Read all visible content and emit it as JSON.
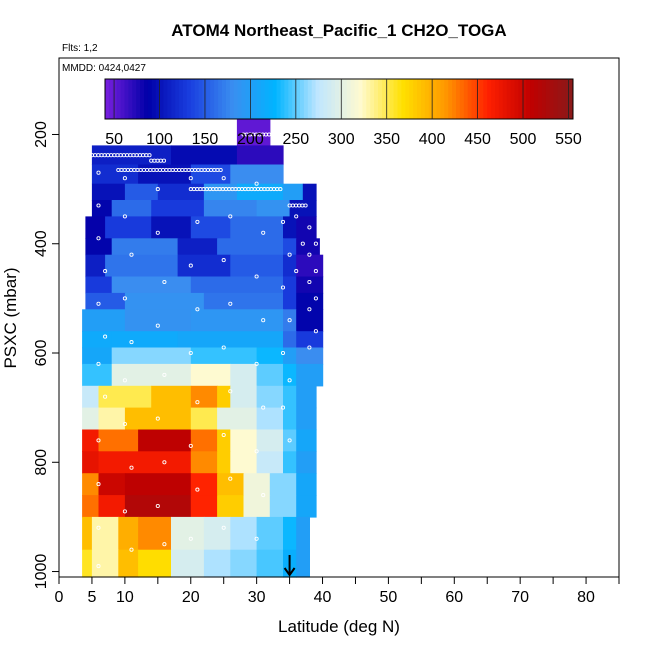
{
  "chart_data": {
    "type": "heatmap",
    "title": "ATOM4 Northeast_Pacific_1 CH2O_TOGA",
    "flights_label": "Flts: 1,2",
    "dates_label": "MMDD: 0424,0427",
    "xlabel": "Latitude (deg N)",
    "ylabel": "PSXC (mbar)",
    "xlim": [
      0,
      85
    ],
    "ylim": [
      1010,
      60
    ],
    "y_reversed": true,
    "x_ticks": [
      0,
      5,
      10,
      20,
      30,
      40,
      50,
      60,
      70,
      80
    ],
    "y_ticks": [
      200,
      400,
      600,
      800,
      1000
    ],
    "colorbar": {
      "min": 40,
      "max": 555,
      "ticks": [
        50,
        100,
        150,
        200,
        250,
        300,
        350,
        400,
        450,
        500,
        550
      ],
      "palette": [
        "#7a1fe0",
        "#0000a8",
        "#1a3fe0",
        "#3a8ef0",
        "#00b4ff",
        "#bfe6ff",
        "#fffad0",
        "#ffe000",
        "#ff9800",
        "#ff2000",
        "#c00000",
        "#8a1a1a"
      ]
    },
    "bands": [
      {
        "p_top": 170,
        "p_bot": 220,
        "segments": [
          [
            27,
            32,
            50
          ]
        ]
      },
      {
        "p_top": 220,
        "p_bot": 255,
        "segments": [
          [
            5,
            17,
            110
          ],
          [
            17,
            27,
            95
          ],
          [
            27,
            34,
            70
          ]
        ]
      },
      {
        "p_top": 255,
        "p_bot": 290,
        "segments": [
          [
            5,
            12,
            120
          ],
          [
            12,
            20,
            100
          ],
          [
            20,
            26,
            140
          ],
          [
            26,
            34,
            180
          ]
        ]
      },
      {
        "p_top": 290,
        "p_bot": 320,
        "segments": [
          [
            5,
            10,
            100
          ],
          [
            10,
            15,
            150
          ],
          [
            15,
            22,
            120
          ],
          [
            22,
            27,
            190
          ],
          [
            27,
            34,
            215
          ],
          [
            34,
            37,
            200
          ],
          [
            37,
            39,
            100
          ]
        ]
      },
      {
        "p_top": 320,
        "p_bot": 350,
        "segments": [
          [
            5,
            8,
            90
          ],
          [
            8,
            14,
            160
          ],
          [
            14,
            22,
            130
          ],
          [
            22,
            30,
            175
          ],
          [
            30,
            35,
            185
          ],
          [
            35,
            39,
            100
          ]
        ]
      },
      {
        "p_top": 350,
        "p_bot": 390,
        "segments": [
          [
            4,
            7,
            85
          ],
          [
            7,
            14,
            130
          ],
          [
            14,
            20,
            100
          ],
          [
            20,
            26,
            140
          ],
          [
            26,
            34,
            160
          ],
          [
            34,
            36,
            100
          ],
          [
            36,
            39,
            80
          ]
        ]
      },
      {
        "p_top": 390,
        "p_bot": 420,
        "segments": [
          [
            4,
            8,
            90
          ],
          [
            8,
            18,
            170
          ],
          [
            18,
            24,
            110
          ],
          [
            24,
            34,
            160
          ],
          [
            34,
            36,
            140
          ],
          [
            36,
            39.5,
            80
          ]
        ]
      },
      {
        "p_top": 420,
        "p_bot": 460,
        "segments": [
          [
            4,
            7,
            110
          ],
          [
            7,
            18,
            165
          ],
          [
            18,
            26,
            120
          ],
          [
            26,
            34,
            150
          ],
          [
            34,
            36,
            120
          ],
          [
            36,
            40,
            70
          ]
        ]
      },
      {
        "p_top": 460,
        "p_bot": 490,
        "segments": [
          [
            4,
            8,
            130
          ],
          [
            8,
            20,
            180
          ],
          [
            20,
            34,
            160
          ],
          [
            34,
            36,
            130
          ],
          [
            36,
            40,
            80
          ]
        ]
      },
      {
        "p_top": 490,
        "p_bot": 520,
        "segments": [
          [
            4,
            10,
            150
          ],
          [
            10,
            22,
            185
          ],
          [
            22,
            34,
            165
          ],
          [
            34,
            36,
            130
          ],
          [
            36,
            40,
            90
          ]
        ]
      },
      {
        "p_top": 520,
        "p_bot": 560,
        "segments": [
          [
            3.5,
            10,
            200
          ],
          [
            10,
            20,
            185
          ],
          [
            20,
            34,
            190
          ],
          [
            34,
            36,
            170
          ],
          [
            36,
            40,
            90
          ]
        ]
      },
      {
        "p_top": 560,
        "p_bot": 590,
        "segments": [
          [
            3.5,
            8,
            215
          ],
          [
            8,
            18,
            215
          ],
          [
            18,
            34,
            210
          ],
          [
            34,
            36,
            160
          ],
          [
            36,
            40,
            130
          ]
        ]
      },
      {
        "p_top": 590,
        "p_bot": 620,
        "segments": [
          [
            3.5,
            8,
            210
          ],
          [
            8,
            20,
            260
          ],
          [
            20,
            30,
            240
          ],
          [
            30,
            34,
            230
          ],
          [
            34,
            36,
            200
          ],
          [
            36,
            40,
            180
          ]
        ]
      },
      {
        "p_top": 620,
        "p_bot": 660,
        "segments": [
          [
            3.5,
            8,
            240
          ],
          [
            8,
            20,
            300
          ],
          [
            20,
            26,
            320
          ],
          [
            26,
            30,
            290
          ],
          [
            30,
            34,
            250
          ],
          [
            34,
            36,
            230
          ],
          [
            36,
            40,
            200
          ]
        ]
      },
      {
        "p_top": 660,
        "p_bot": 700,
        "segments": [
          [
            3.5,
            6,
            280
          ],
          [
            6,
            14,
            350
          ],
          [
            14,
            20,
            390
          ],
          [
            20,
            24,
            420
          ],
          [
            24,
            26,
            380
          ],
          [
            26,
            30,
            290
          ],
          [
            30,
            34,
            260
          ],
          [
            34,
            36,
            240
          ],
          [
            36,
            39,
            200
          ]
        ]
      },
      {
        "p_top": 700,
        "p_bot": 740,
        "segments": [
          [
            3.5,
            6,
            300
          ],
          [
            6,
            10,
            330
          ],
          [
            10,
            20,
            390
          ],
          [
            20,
            24,
            350
          ],
          [
            24,
            30,
            300
          ],
          [
            30,
            34,
            270
          ],
          [
            34,
            36,
            240
          ],
          [
            36,
            39,
            200
          ]
        ]
      },
      {
        "p_top": 740,
        "p_bot": 780,
        "segments": [
          [
            3.5,
            6,
            470
          ],
          [
            6,
            12,
            430
          ],
          [
            12,
            20,
            510
          ],
          [
            20,
            24,
            430
          ],
          [
            24,
            26,
            380
          ],
          [
            26,
            30,
            320
          ],
          [
            30,
            34,
            290
          ],
          [
            34,
            36,
            250
          ],
          [
            36,
            39,
            210
          ]
        ]
      },
      {
        "p_top": 780,
        "p_bot": 820,
        "segments": [
          [
            3.5,
            6,
            480
          ],
          [
            6,
            10,
            470
          ],
          [
            10,
            20,
            470
          ],
          [
            20,
            24,
            420
          ],
          [
            24,
            26,
            380
          ],
          [
            26,
            30,
            320
          ],
          [
            30,
            34,
            280
          ],
          [
            34,
            36,
            240
          ],
          [
            36,
            39,
            200
          ]
        ]
      },
      {
        "p_top": 820,
        "p_bot": 860,
        "segments": [
          [
            3.5,
            6,
            420
          ],
          [
            6,
            10,
            500
          ],
          [
            10,
            20,
            510
          ],
          [
            20,
            24,
            460
          ],
          [
            24,
            28,
            390
          ],
          [
            28,
            32,
            310
          ],
          [
            32,
            36,
            260
          ],
          [
            36,
            39,
            210
          ]
        ]
      },
      {
        "p_top": 860,
        "p_bot": 900,
        "segments": [
          [
            3.5,
            6,
            430
          ],
          [
            6,
            10,
            470
          ],
          [
            10,
            20,
            520
          ],
          [
            20,
            24,
            460
          ],
          [
            24,
            28,
            380
          ],
          [
            28,
            32,
            310
          ],
          [
            32,
            36,
            260
          ],
          [
            36,
            39,
            210
          ]
        ]
      },
      {
        "p_top": 900,
        "p_bot": 960,
        "segments": [
          [
            3.5,
            5,
            390
          ],
          [
            5,
            9,
            330
          ],
          [
            9,
            12,
            400
          ],
          [
            12,
            17,
            420
          ],
          [
            17,
            22,
            300
          ],
          [
            22,
            26,
            290
          ],
          [
            26,
            30,
            270
          ],
          [
            30,
            34,
            250
          ],
          [
            34,
            36,
            230
          ],
          [
            36,
            38,
            200
          ]
        ]
      },
      {
        "p_top": 960,
        "p_bot": 1010,
        "segments": [
          [
            3.5,
            5,
            360
          ],
          [
            5,
            9,
            330
          ],
          [
            9,
            12,
            390
          ],
          [
            12,
            17,
            370
          ],
          [
            17,
            22,
            290
          ],
          [
            22,
            26,
            270
          ],
          [
            26,
            30,
            260
          ],
          [
            30,
            34,
            245
          ],
          [
            34,
            36,
            220
          ],
          [
            36,
            38,
            200
          ]
        ]
      }
    ],
    "sample_tracks": [
      {
        "p": 238,
        "x": [
          5,
          14
        ]
      },
      {
        "p": 248,
        "x": [
          14,
          16
        ]
      },
      {
        "p": 265,
        "x": [
          9,
          25
        ]
      },
      {
        "p": 300,
        "x": [
          20,
          34
        ]
      },
      {
        "p": 330,
        "x": [
          35,
          37.5
        ]
      },
      {
        "p": 200,
        "x": [
          28,
          32
        ]
      }
    ],
    "scatter_points": [
      [
        6,
        270
      ],
      [
        6,
        330
      ],
      [
        6,
        390
      ],
      [
        7,
        450
      ],
      [
        6,
        510
      ],
      [
        7,
        570
      ],
      [
        6,
        620
      ],
      [
        7,
        680
      ],
      [
        6,
        760
      ],
      [
        6,
        840
      ],
      [
        6,
        920
      ],
      [
        6,
        990
      ],
      [
        10,
        280
      ],
      [
        10,
        350
      ],
      [
        11,
        420
      ],
      [
        10,
        500
      ],
      [
        11,
        580
      ],
      [
        10,
        650
      ],
      [
        10,
        730
      ],
      [
        11,
        810
      ],
      [
        10,
        890
      ],
      [
        11,
        960
      ],
      [
        15,
        300
      ],
      [
        15,
        380
      ],
      [
        16,
        470
      ],
      [
        15,
        550
      ],
      [
        16,
        640
      ],
      [
        15,
        720
      ],
      [
        16,
        800
      ],
      [
        15,
        880
      ],
      [
        16,
        950
      ],
      [
        20,
        280
      ],
      [
        21,
        360
      ],
      [
        20,
        440
      ],
      [
        21,
        520
      ],
      [
        20,
        600
      ],
      [
        21,
        690
      ],
      [
        20,
        770
      ],
      [
        21,
        850
      ],
      [
        20,
        940
      ],
      [
        25,
        280
      ],
      [
        26,
        350
      ],
      [
        25,
        430
      ],
      [
        26,
        510
      ],
      [
        25,
        590
      ],
      [
        26,
        670
      ],
      [
        25,
        750
      ],
      [
        26,
        830
      ],
      [
        25,
        920
      ],
      [
        30,
        290
      ],
      [
        31,
        380
      ],
      [
        30,
        460
      ],
      [
        31,
        540
      ],
      [
        30,
        620
      ],
      [
        31,
        700
      ],
      [
        30,
        780
      ],
      [
        31,
        860
      ],
      [
        30,
        940
      ],
      [
        34,
        360
      ],
      [
        35,
        420
      ],
      [
        34,
        480
      ],
      [
        35,
        540
      ],
      [
        34,
        600
      ],
      [
        35,
        650
      ],
      [
        34,
        700
      ],
      [
        35,
        760
      ],
      [
        36,
        350
      ],
      [
        37,
        400
      ],
      [
        36,
        450
      ],
      [
        38,
        370
      ],
      [
        38,
        420
      ],
      [
        38,
        470
      ],
      [
        39,
        400
      ],
      [
        39,
        450
      ],
      [
        39,
        500
      ],
      [
        38,
        520
      ],
      [
        39,
        560
      ],
      [
        38,
        590
      ]
    ],
    "arrow_latitude": 35
  }
}
